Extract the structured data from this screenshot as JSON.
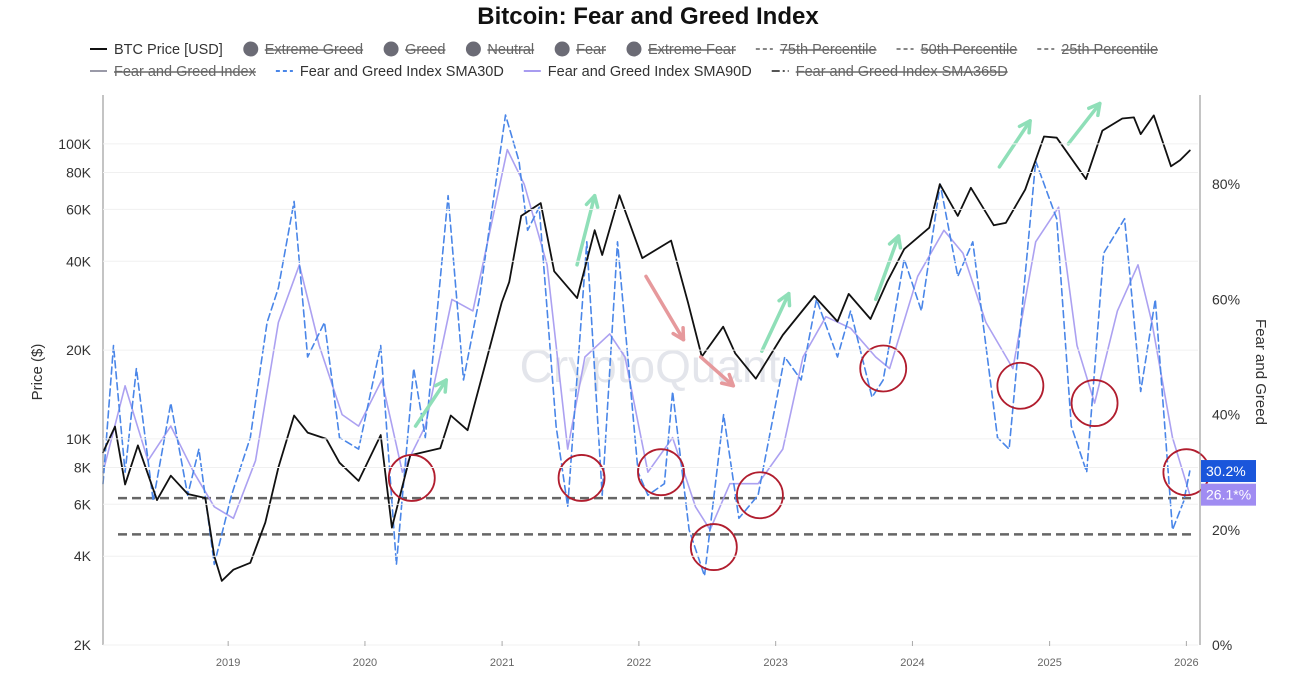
{
  "chart_data": {
    "type": "line",
    "title": "Bitcoin: Fear and Greed Index",
    "watermark": "CryptoQuant",
    "x_range": [
      "2018-02-01",
      "2026-02-01"
    ],
    "x_ticks": [
      "2019",
      "2020",
      "2021",
      "2022",
      "2023",
      "2024",
      "2025",
      "2026"
    ],
    "y_left": {
      "label": "Price ($)",
      "scale": "log",
      "range": [
        2000,
        150000
      ],
      "ticks": [
        {
          "value": 2000,
          "label": "2K"
        },
        {
          "value": 4000,
          "label": "4K"
        },
        {
          "value": 6000,
          "label": "6K"
        },
        {
          "value": 8000,
          "label": "8K"
        },
        {
          "value": 10000,
          "label": "10K"
        },
        {
          "value": 20000,
          "label": "20K"
        },
        {
          "value": 40000,
          "label": "40K"
        },
        {
          "value": 60000,
          "label": "60K"
        },
        {
          "value": 80000,
          "label": "80K"
        },
        {
          "value": 100000,
          "label": "100K"
        }
      ]
    },
    "y_right": {
      "label": "Fear and Greed",
      "range": [
        0,
        96
      ],
      "ticks": [
        {
          "value": 0,
          "label": "0%"
        },
        {
          "value": 20,
          "label": "20%"
        },
        {
          "value": 40,
          "label": "40%"
        },
        {
          "value": 60,
          "label": "60%"
        },
        {
          "value": 80,
          "label": "80%"
        }
      ]
    },
    "legend": [
      {
        "name": "BTC Price [USD]",
        "marker": "line",
        "color": "#111111",
        "active": true
      },
      {
        "name": "Extreme Greed",
        "marker": "dot",
        "color": "#6b6b75",
        "active": false
      },
      {
        "name": "Greed",
        "marker": "dot",
        "color": "#6b6b75",
        "active": false
      },
      {
        "name": "Neutral",
        "marker": "dot",
        "color": "#6b6b75",
        "active": false
      },
      {
        "name": "Fear",
        "marker": "dot",
        "color": "#6b6b75",
        "active": false
      },
      {
        "name": "Extreme Fear",
        "marker": "dot",
        "color": "#6b6b75",
        "active": false
      },
      {
        "name": "75th Percentile",
        "marker": "dash",
        "color": "#888888",
        "active": false
      },
      {
        "name": "50th Percentile",
        "marker": "dash",
        "color": "#888888",
        "active": false
      },
      {
        "name": "25th Percentile",
        "marker": "dash",
        "color": "#888888",
        "active": false
      },
      {
        "name": "Fear and Greed Index",
        "marker": "line",
        "color": "#9a9aa8",
        "active": false
      },
      {
        "name": "Fear and Greed Index SMA30D",
        "marker": "dash",
        "color": "#4a86e8",
        "active": true
      },
      {
        "name": "Fear and Greed Index SMA90D",
        "marker": "line",
        "color": "#a89cf0",
        "active": true
      },
      {
        "name": "Fear and Greed Index SMA365D",
        "marker": "dashdot",
        "color": "#555555",
        "active": false
      }
    ],
    "series": [
      {
        "name": "BTC Price [USD]",
        "axis": "left",
        "color": "#111111",
        "style": "solid",
        "points": [
          [
            "2018-02-01",
            9000
          ],
          [
            "2018-03-05",
            11000
          ],
          [
            "2018-04-01",
            7000
          ],
          [
            "2018-05-05",
            9500
          ],
          [
            "2018-06-25",
            6200
          ],
          [
            "2018-08-01",
            7500
          ],
          [
            "2018-09-15",
            6500
          ],
          [
            "2018-11-01",
            6300
          ],
          [
            "2018-11-25",
            4000
          ],
          [
            "2018-12-15",
            3300
          ],
          [
            "2019-01-15",
            3600
          ],
          [
            "2019-03-01",
            3800
          ],
          [
            "2019-04-10",
            5200
          ],
          [
            "2019-05-15",
            8000
          ],
          [
            "2019-06-26",
            12000
          ],
          [
            "2019-08-01",
            10500
          ],
          [
            "2019-09-20",
            10000
          ],
          [
            "2019-10-25",
            8300
          ],
          [
            "2019-12-15",
            7200
          ],
          [
            "2020-02-12",
            10300
          ],
          [
            "2020-03-13",
            5000
          ],
          [
            "2020-05-01",
            8800
          ],
          [
            "2020-07-20",
            9300
          ],
          [
            "2020-08-17",
            12000
          ],
          [
            "2020-10-01",
            10700
          ],
          [
            "2020-11-20",
            18500
          ],
          [
            "2020-12-31",
            29000
          ],
          [
            "2021-01-20",
            34000
          ],
          [
            "2021-02-21",
            57000
          ],
          [
            "2021-04-14",
            63000
          ],
          [
            "2021-05-20",
            37000
          ],
          [
            "2021-07-20",
            30000
          ],
          [
            "2021-09-05",
            51000
          ],
          [
            "2021-09-25",
            42000
          ],
          [
            "2021-11-10",
            67000
          ],
          [
            "2022-01-10",
            41000
          ],
          [
            "2022-03-28",
            47000
          ],
          [
            "2022-05-12",
            29000
          ],
          [
            "2022-06-18",
            19000
          ],
          [
            "2022-08-14",
            24000
          ],
          [
            "2022-09-15",
            19500
          ],
          [
            "2022-11-09",
            16000
          ],
          [
            "2023-01-20",
            22500
          ],
          [
            "2023-04-14",
            30500
          ],
          [
            "2023-06-15",
            25000
          ],
          [
            "2023-07-15",
            31000
          ],
          [
            "2023-09-11",
            25500
          ],
          [
            "2023-10-25",
            34000
          ],
          [
            "2023-12-10",
            44000
          ],
          [
            "2024-02-15",
            52000
          ],
          [
            "2024-03-14",
            73000
          ],
          [
            "2024-05-01",
            57000
          ],
          [
            "2024-06-05",
            71000
          ],
          [
            "2024-08-05",
            53000
          ],
          [
            "2024-09-06",
            54000
          ],
          [
            "2024-10-28",
            70000
          ],
          [
            "2024-12-17",
            106000
          ],
          [
            "2025-01-20",
            105000
          ],
          [
            "2025-04-08",
            76000
          ],
          [
            "2025-05-22",
            111000
          ],
          [
            "2025-07-14",
            122000
          ],
          [
            "2025-08-14",
            123000
          ],
          [
            "2025-09-01",
            108000
          ],
          [
            "2025-10-06",
            125000
          ],
          [
            "2025-11-21",
            84000
          ],
          [
            "2025-12-15",
            88000
          ],
          [
            "2026-01-10",
            95000
          ]
        ]
      },
      {
        "name": "Fear and Greed Index SMA30D",
        "axis": "right",
        "color": "#4a86e8",
        "style": "dashed",
        "points": [
          [
            "2018-02-01",
            28
          ],
          [
            "2018-03-01",
            52
          ],
          [
            "2018-04-01",
            30
          ],
          [
            "2018-05-01",
            48
          ],
          [
            "2018-06-15",
            25
          ],
          [
            "2018-08-01",
            42
          ],
          [
            "2018-09-15",
            26
          ],
          [
            "2018-10-15",
            34
          ],
          [
            "2018-11-25",
            14
          ],
          [
            "2019-01-10",
            26
          ],
          [
            "2019-03-01",
            36
          ],
          [
            "2019-04-15",
            56
          ],
          [
            "2019-05-15",
            62
          ],
          [
            "2019-06-26",
            77
          ],
          [
            "2019-08-01",
            50
          ],
          [
            "2019-09-15",
            56
          ],
          [
            "2019-10-25",
            36
          ],
          [
            "2019-12-15",
            34
          ],
          [
            "2020-02-12",
            52
          ],
          [
            "2020-03-25",
            14
          ],
          [
            "2020-05-10",
            48
          ],
          [
            "2020-06-10",
            36
          ],
          [
            "2020-08-10",
            78
          ],
          [
            "2020-09-20",
            46
          ],
          [
            "2020-11-01",
            60
          ],
          [
            "2021-01-10",
            92
          ],
          [
            "2021-02-15",
            84
          ],
          [
            "2021-03-10",
            72
          ],
          [
            "2021-04-10",
            76
          ],
          [
            "2021-05-25",
            38
          ],
          [
            "2021-06-25",
            24
          ],
          [
            "2021-08-15",
            70
          ],
          [
            "2021-09-25",
            26
          ],
          [
            "2021-11-05",
            70
          ],
          [
            "2021-12-30",
            30
          ],
          [
            "2022-01-25",
            26
          ],
          [
            "2022-03-10",
            28
          ],
          [
            "2022-04-01",
            44
          ],
          [
            "2022-05-15",
            20
          ],
          [
            "2022-06-25",
            12
          ],
          [
            "2022-08-15",
            40
          ],
          [
            "2022-09-25",
            22
          ],
          [
            "2022-11-15",
            26
          ],
          [
            "2023-01-25",
            50
          ],
          [
            "2023-03-10",
            46
          ],
          [
            "2023-04-20",
            60
          ],
          [
            "2023-06-15",
            50
          ],
          [
            "2023-07-20",
            58
          ],
          [
            "2023-09-15",
            43
          ],
          [
            "2023-10-15",
            46
          ],
          [
            "2023-12-10",
            67
          ],
          [
            "2024-01-25",
            58
          ],
          [
            "2024-03-15",
            80
          ],
          [
            "2024-05-01",
            64
          ],
          [
            "2024-06-10",
            70
          ],
          [
            "2024-08-15",
            36
          ],
          [
            "2024-09-15",
            34
          ],
          [
            "2024-11-25",
            84
          ],
          [
            "2025-01-20",
            74
          ],
          [
            "2025-02-28",
            38
          ],
          [
            "2025-04-10",
            30
          ],
          [
            "2025-05-25",
            68
          ],
          [
            "2025-07-20",
            74
          ],
          [
            "2025-09-01",
            44
          ],
          [
            "2025-10-10",
            60
          ],
          [
            "2025-11-25",
            20
          ],
          [
            "2025-12-25",
            25
          ],
          [
            "2026-01-10",
            30.2
          ]
        ]
      },
      {
        "name": "Fear and Greed Index SMA90D",
        "axis": "right",
        "color": "#a89cf0",
        "style": "solid",
        "points": [
          [
            "2018-02-01",
            30
          ],
          [
            "2018-04-01",
            45
          ],
          [
            "2018-06-01",
            32
          ],
          [
            "2018-08-01",
            38
          ],
          [
            "2018-10-01",
            30
          ],
          [
            "2018-11-25",
            24
          ],
          [
            "2019-01-15",
            22
          ],
          [
            "2019-03-15",
            32
          ],
          [
            "2019-05-15",
            56
          ],
          [
            "2019-07-10",
            66
          ],
          [
            "2019-09-01",
            52
          ],
          [
            "2019-11-01",
            40
          ],
          [
            "2019-12-15",
            38
          ],
          [
            "2020-02-15",
            46
          ],
          [
            "2020-04-10",
            30
          ],
          [
            "2020-06-10",
            38
          ],
          [
            "2020-08-20",
            60
          ],
          [
            "2020-10-15",
            58
          ],
          [
            "2021-01-15",
            86
          ],
          [
            "2021-03-01",
            80
          ],
          [
            "2021-05-01",
            66
          ],
          [
            "2021-06-25",
            34
          ],
          [
            "2021-08-10",
            50
          ],
          [
            "2021-10-15",
            54
          ],
          [
            "2021-11-25",
            50
          ],
          [
            "2022-01-25",
            30
          ],
          [
            "2022-04-01",
            36
          ],
          [
            "2022-06-01",
            24
          ],
          [
            "2022-07-10",
            20
          ],
          [
            "2022-09-01",
            28
          ],
          [
            "2022-11-15",
            28
          ],
          [
            "2023-01-20",
            34
          ],
          [
            "2023-03-15",
            50
          ],
          [
            "2023-05-15",
            57
          ],
          [
            "2023-07-20",
            55
          ],
          [
            "2023-09-25",
            50
          ],
          [
            "2023-11-01",
            48
          ],
          [
            "2024-01-15",
            64
          ],
          [
            "2024-03-25",
            72
          ],
          [
            "2024-05-15",
            68
          ],
          [
            "2024-07-15",
            56
          ],
          [
            "2024-09-25",
            48
          ],
          [
            "2024-11-25",
            70
          ],
          [
            "2025-01-25",
            76
          ],
          [
            "2025-03-15",
            52
          ],
          [
            "2025-05-01",
            42
          ],
          [
            "2025-07-01",
            58
          ],
          [
            "2025-08-25",
            66
          ],
          [
            "2025-10-01",
            56
          ],
          [
            "2025-11-25",
            36
          ],
          [
            "2026-01-10",
            26.1
          ]
        ]
      }
    ],
    "reference_lines": [
      {
        "axis": "right",
        "value": 25.5,
        "style": "dashed",
        "color": "#666666"
      },
      {
        "axis": "right",
        "value": 19.2,
        "style": "dashed",
        "color": "#666666"
      }
    ],
    "annotations": {
      "circles": [
        {
          "date": "2020-05-05",
          "value": 29
        },
        {
          "date": "2021-08-01",
          "value": 29
        },
        {
          "date": "2022-03-01",
          "value": 30
        },
        {
          "date": "2022-07-20",
          "value": 17
        },
        {
          "date": "2022-11-20",
          "value": 26
        },
        {
          "date": "2023-10-15",
          "value": 48
        },
        {
          "date": "2024-10-15",
          "value": 45
        },
        {
          "date": "2025-05-01",
          "value": 42
        },
        {
          "date": "2026-01-01",
          "value": 30
        }
      ],
      "green_arrows": [
        {
          "from": [
            "2020-05-15",
            38
          ],
          "to": [
            "2020-08-05",
            46
          ]
        },
        {
          "from": [
            "2021-07-20",
            66
          ],
          "to": [
            "2021-09-05",
            78
          ]
        },
        {
          "from": [
            "2022-11-25",
            51
          ],
          "to": [
            "2023-02-05",
            61
          ]
        },
        {
          "from": [
            "2023-09-25",
            60
          ],
          "to": [
            "2023-11-25",
            71
          ]
        },
        {
          "from": [
            "2024-08-20",
            83
          ],
          "to": [
            "2024-11-10",
            91
          ]
        },
        {
          "from": [
            "2025-02-20",
            87
          ],
          "to": [
            "2025-05-15",
            94
          ]
        }
      ],
      "red_arrows": [
        {
          "from": [
            "2022-01-20",
            64
          ],
          "to": [
            "2022-04-30",
            53
          ]
        },
        {
          "from": [
            "2022-06-15",
            50
          ],
          "to": [
            "2022-09-10",
            45
          ]
        }
      ]
    },
    "end_labels": [
      {
        "text": "30.2%",
        "series": "Fear and Greed Index SMA30D",
        "color": "#1a56db"
      },
      {
        "text": "26.1*%",
        "series": "Fear and Greed Index SMA90D",
        "color": "#a08cf2"
      }
    ]
  }
}
